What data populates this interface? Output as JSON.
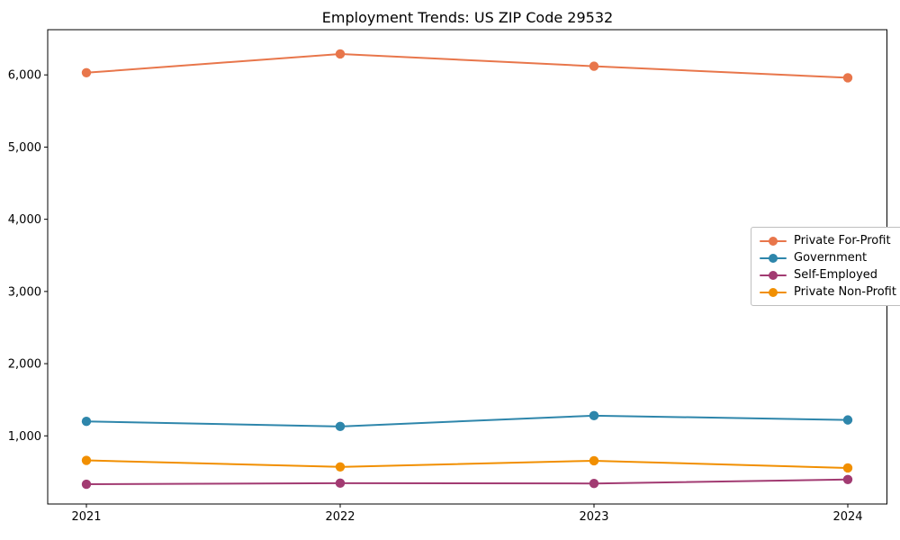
{
  "chart_data": {
    "type": "line",
    "title": "Employment Trends: US ZIP Code 29532",
    "categories": [
      "2021",
      "2022",
      "2023",
      "2024"
    ],
    "series": [
      {
        "name": "Private For-Profit",
        "color": "#E8764B",
        "values": [
          6030,
          6290,
          6120,
          5960
        ]
      },
      {
        "name": "Government",
        "color": "#2E86AB",
        "values": [
          1200,
          1130,
          1280,
          1220
        ]
      },
      {
        "name": "Self-Employed",
        "color": "#A23B72",
        "values": [
          330,
          345,
          340,
          395
        ]
      },
      {
        "name": "Private Non-Profit",
        "color": "#F18F01",
        "values": [
          660,
          570,
          655,
          555
        ]
      }
    ],
    "xlabel": "",
    "ylabel": "",
    "ylim": [
      56,
      6626
    ],
    "yticks": [
      1000,
      2000,
      3000,
      4000,
      5000,
      6000
    ],
    "ytick_labels": [
      "1,000",
      "2,000",
      "3,000",
      "4,000",
      "5,000",
      "6,000"
    ],
    "grid": false,
    "legend_position": "center right",
    "marker": "circle",
    "line_width": 2,
    "marker_radius": 5.2,
    "axis_color": "#000000"
  }
}
